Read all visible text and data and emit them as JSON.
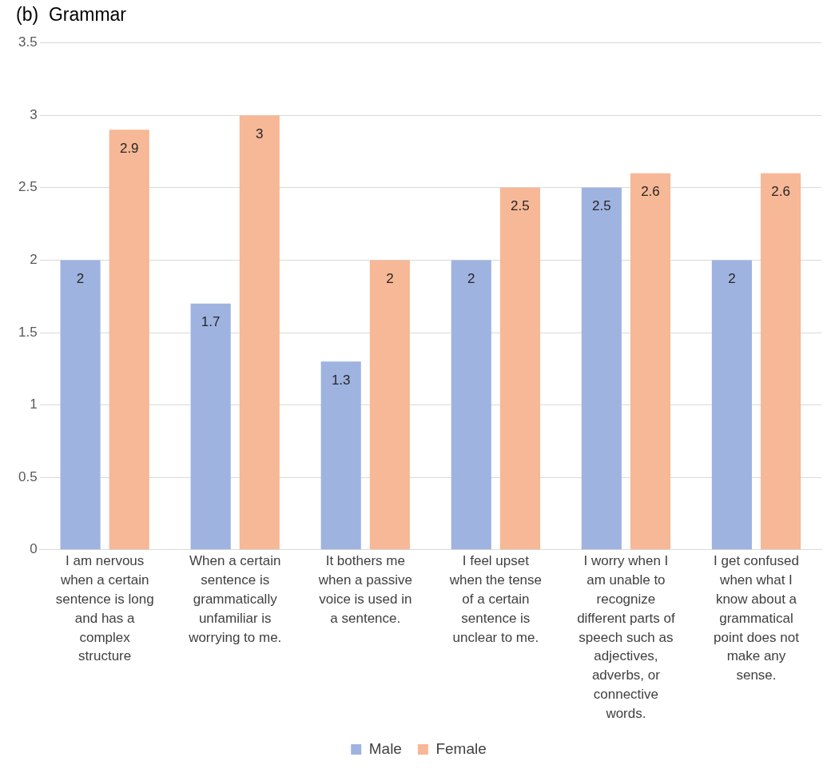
{
  "chart_data": {
    "type": "bar",
    "title": "(b)  Grammar",
    "categories": [
      "I am nervous when a certain sentence is long and has a complex structure",
      "When a certain sentence is grammatically unfamiliar is worrying to me.",
      "It bothers me when a passive voice is used in a sentence.",
      "I feel upset when the tense of a certain sentence is unclear to me.",
      "I worry when I am unable to recognize different parts of speech such as adjectives, adverbs, or connective words.",
      "I get confused when what I know about a grammatical point does not make any sense."
    ],
    "series": [
      {
        "name": "Male",
        "color": "#9fb3e0",
        "values": [
          2,
          1.7,
          1.3,
          2,
          2.5,
          2
        ]
      },
      {
        "name": "Female",
        "color": "#f6b896",
        "values": [
          2.9,
          3,
          2,
          2.5,
          2.6,
          2.6
        ]
      }
    ],
    "ylim": [
      0,
      3.5
    ],
    "yticks": [
      0,
      0.5,
      1,
      1.5,
      2,
      2.5,
      3,
      3.5
    ],
    "grid": "y",
    "legend": "bottom",
    "data_labels": true
  }
}
